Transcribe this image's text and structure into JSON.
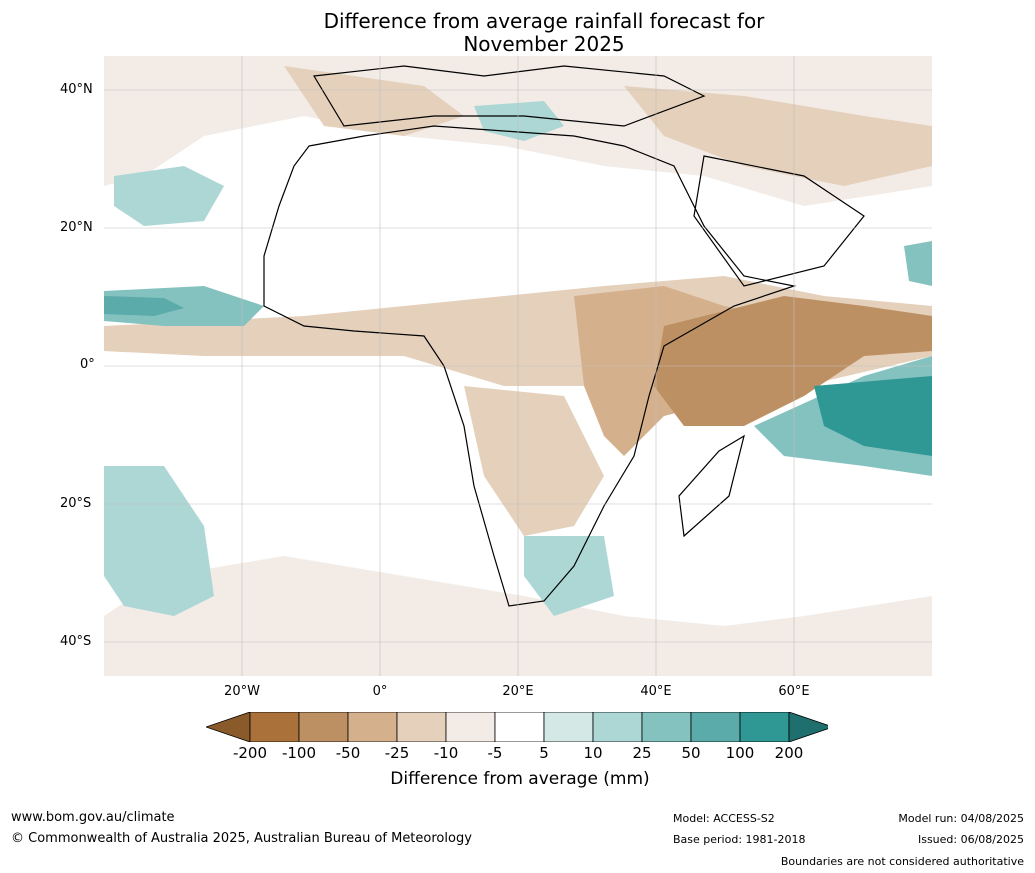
{
  "title_line1": "Difference from average rainfall forecast for",
  "title_line2": "November 2025",
  "lat_labels": [
    "40°N",
    "20°N",
    "0°",
    "20°S",
    "40°S"
  ],
  "lon_labels": [
    "20°W",
    "0°",
    "20°E",
    "40°E",
    "60°E"
  ],
  "colorbar": {
    "label": "Difference from average (mm)",
    "ticks": [
      "-200",
      "-100",
      "-50",
      "-25",
      "-10",
      "-5",
      "5",
      "10",
      "25",
      "50",
      "100",
      "200"
    ],
    "colors": [
      "#8a5a2b",
      "#ab713b",
      "#bd9063",
      "#d4b08c",
      "#e4d0bb",
      "#f3ece6",
      "#ffffff",
      "#d4e8e6",
      "#acd7d5",
      "#84c2c0",
      "#5aabaa",
      "#2f9794",
      "#1e6f6d"
    ]
  },
  "footer": {
    "website": "www.bom.gov.au/climate",
    "copyright": "© Commonwealth of Australia 2025, Australian Bureau of Meteorology",
    "model": "Model: ACCESS-S2",
    "base_period": "Base period: 1981-2018",
    "model_run": "Model run: 04/08/2025",
    "issued": "Issued: 06/08/2025",
    "disclaimer": "Boundaries are not considered authoritative"
  }
}
